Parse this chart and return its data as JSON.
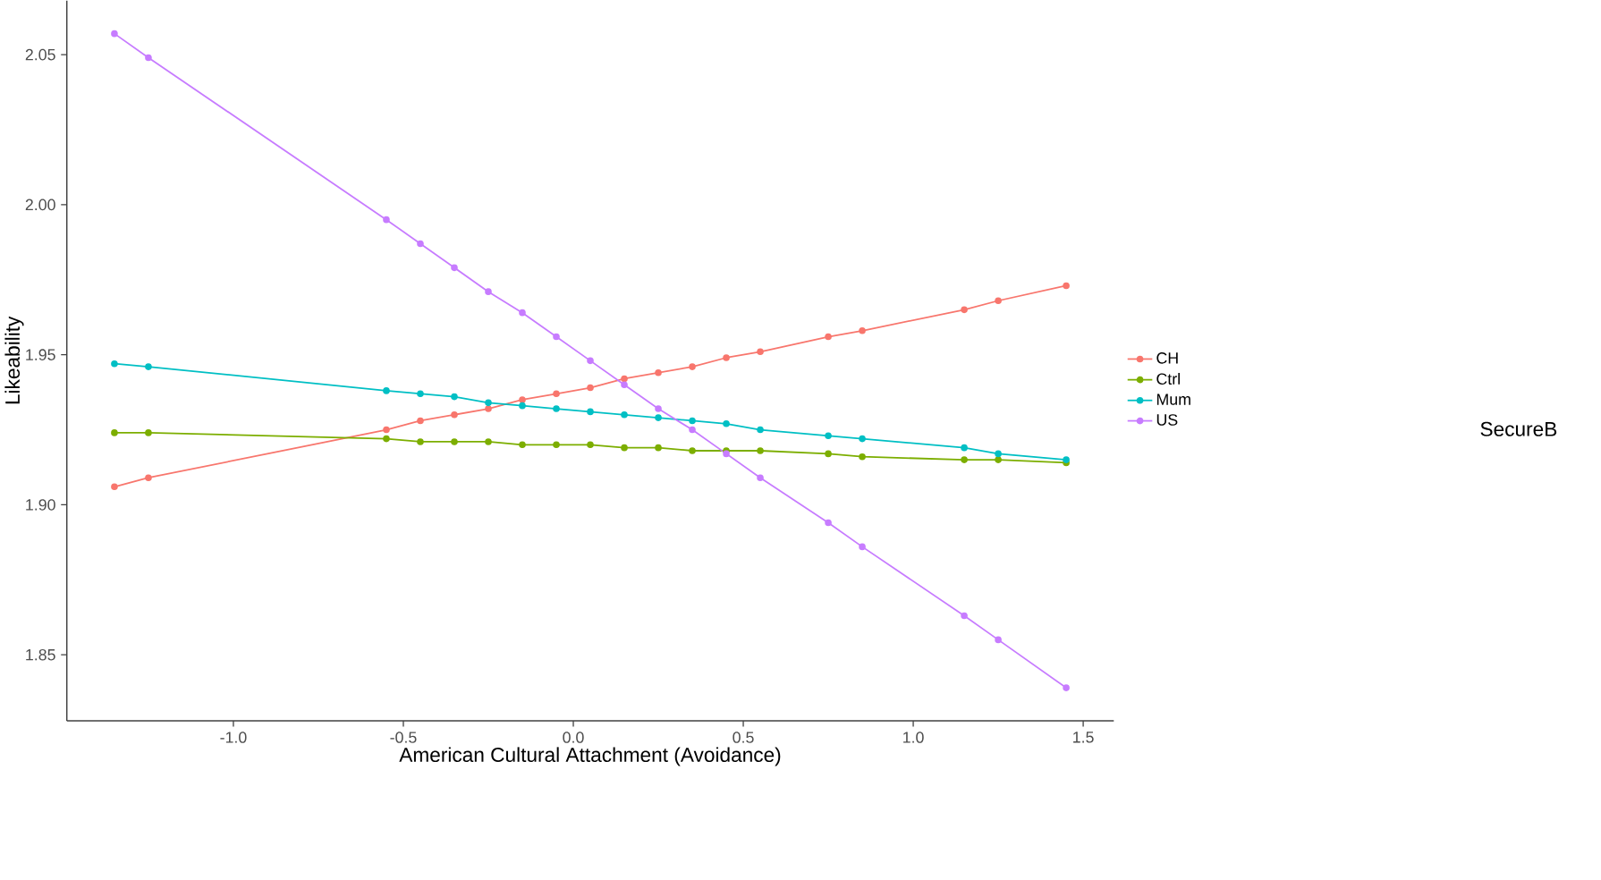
{
  "chart_data": {
    "type": "line",
    "xlabel": "American Cultural Attachment (Avoidance)",
    "ylabel": "Likeability",
    "legend_title": "SecureB",
    "x": [
      -1.35,
      -1.25,
      -0.55,
      -0.45,
      -0.35,
      -0.25,
      -0.15,
      -0.05,
      0.05,
      0.15,
      0.25,
      0.35,
      0.45,
      0.55,
      0.75,
      0.85,
      1.15,
      1.25,
      1.45
    ],
    "series": [
      {
        "name": "CH",
        "color": "#f8766d",
        "values": [
          1.906,
          1.909,
          1.925,
          1.928,
          1.93,
          1.932,
          1.935,
          1.937,
          1.939,
          1.942,
          1.944,
          1.946,
          1.949,
          1.951,
          1.956,
          1.958,
          1.965,
          1.968,
          1.973
        ]
      },
      {
        "name": "Ctrl",
        "color": "#7cae00",
        "values": [
          1.924,
          1.924,
          1.922,
          1.921,
          1.921,
          1.921,
          1.92,
          1.92,
          1.92,
          1.919,
          1.919,
          1.918,
          1.918,
          1.918,
          1.917,
          1.916,
          1.915,
          1.915,
          1.914
        ]
      },
      {
        "name": "Mum",
        "color": "#00bfc4",
        "values": [
          1.947,
          1.946,
          1.938,
          1.937,
          1.936,
          1.934,
          1.933,
          1.932,
          1.931,
          1.93,
          1.929,
          1.928,
          1.927,
          1.925,
          1.923,
          1.922,
          1.919,
          1.917,
          1.915
        ]
      },
      {
        "name": "US",
        "color": "#c77cff",
        "values": [
          2.057,
          2.049,
          1.995,
          1.987,
          1.979,
          1.971,
          1.964,
          1.956,
          1.948,
          1.94,
          1.932,
          1.925,
          1.917,
          1.909,
          1.894,
          1.886,
          1.863,
          1.855,
          1.839
        ]
      }
    ],
    "xlim": [
      -1.49,
      1.59
    ],
    "ylim": [
      1.828,
      2.068
    ],
    "xticks": [
      {
        "value": -1.0,
        "label": "-1.0"
      },
      {
        "value": -0.5,
        "label": "-0.5"
      },
      {
        "value": 0.0,
        "label": "0.0"
      },
      {
        "value": 0.5,
        "label": "0.5"
      },
      {
        "value": 1.0,
        "label": "1.0"
      },
      {
        "value": 1.5,
        "label": "1.5"
      }
    ],
    "yticks": [
      1.85,
      {
        "value": 1.9,
        "label": "1.90"
      },
      1.95,
      {
        "value": 2.0,
        "label": "2.00"
      },
      2.05
    ],
    "grid": false,
    "legend": "right",
    "marker": "circle",
    "line_style": "solid"
  }
}
